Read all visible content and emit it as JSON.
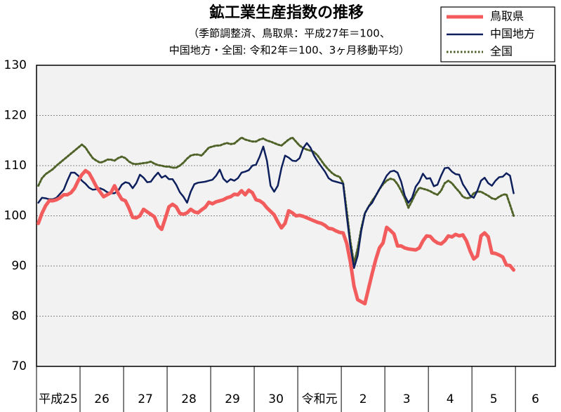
{
  "chart_data": {
    "type": "line",
    "title": "鉱工業生産指数の推移",
    "subtitle": [
      "（季節調整済、鳥取県：平成27年＝100、",
      "中国地方・全国: 令和2年＝100、3ヶ月移動平均）"
    ],
    "categories": [
      "平成25",
      null,
      null,
      null,
      null,
      null,
      null,
      null,
      null,
      null,
      null,
      null,
      "26",
      null,
      null,
      null,
      null,
      null,
      null,
      null,
      null,
      null,
      null,
      null,
      "27",
      null,
      null,
      null,
      null,
      null,
      null,
      null,
      null,
      null,
      null,
      null,
      "28",
      null,
      null,
      null,
      null,
      null,
      null,
      null,
      null,
      null,
      null,
      null,
      "29",
      null,
      null,
      null,
      null,
      null,
      null,
      null,
      null,
      null,
      null,
      null,
      "30",
      null,
      null,
      null,
      null,
      null,
      null,
      null,
      null,
      null,
      null,
      null,
      "令和元",
      null,
      null,
      null,
      null,
      null,
      null,
      null,
      null,
      null,
      null,
      null,
      "2",
      null,
      null,
      null,
      null,
      null,
      null,
      null,
      null,
      null,
      null,
      null,
      "3",
      null,
      null,
      null,
      null,
      null,
      null,
      null,
      null,
      null,
      null,
      null,
      "4",
      null,
      null,
      null,
      null,
      null,
      null,
      null,
      null,
      null,
      null,
      null,
      "5",
      null,
      null,
      null,
      null,
      null,
      null,
      null,
      null,
      null,
      null,
      null,
      "6",
      null,
      null,
      null,
      null,
      null,
      null,
      null,
      null,
      null,
      null,
      null
    ],
    "series": [
      {
        "name": "鳥取県",
        "color": "#f25c5c",
        "style": "solid",
        "values": [
          98.5,
          100.5,
          102,
          103,
          103,
          103.2,
          103.6,
          104.2,
          104.2,
          104.6,
          105.5,
          107,
          108.2,
          109,
          108.5,
          107.2,
          105.8,
          104.8,
          103.8,
          104.2,
          104.6,
          106,
          104.5,
          103.3,
          103,
          101.5,
          99.7,
          99.6,
          100,
          101.3,
          100.8,
          100.3,
          99.8,
          98,
          97.3,
          99.5,
          101.8,
          102.3,
          101.8,
          100.5,
          100.3,
          100.6,
          101.3,
          100.8,
          100.6,
          101.2,
          101.7,
          102.7,
          102.4,
          102.8,
          103,
          103.2,
          103.6,
          103.8,
          104.3,
          104.2,
          105,
          104.2,
          105.1,
          104.6,
          103.2,
          103,
          102.5,
          101.6,
          100.9,
          100.2,
          98.8,
          97.6,
          98.5,
          101,
          100.6,
          100,
          100.1,
          99.9,
          99.6,
          99.3,
          99,
          98.7,
          98.5,
          98.1,
          97.5,
          97.4,
          97,
          96.7,
          96.6,
          94.5,
          90.8,
          86,
          83.3,
          82.9,
          82.5,
          85.5,
          88.5,
          91.3,
          93.6,
          94.6,
          97.7,
          97.1,
          96.4,
          94,
          94,
          93.6,
          93.4,
          93.3,
          93.2,
          93.6,
          95,
          96,
          95.9,
          95.1,
          94.6,
          94.4,
          95,
          96,
          95.8,
          96.3,
          96,
          96.2,
          95,
          93,
          91.4,
          92,
          96,
          96.6,
          95.8,
          92.6,
          92.5,
          92.2,
          91.8,
          90.2,
          90.1,
          89.2,
          null,
          null,
          null,
          null,
          null,
          null,
          null,
          null,
          null,
          null,
          null,
          null
        ]
      },
      {
        "name": "中国地方",
        "color": "#0d1f5c",
        "style": "solid",
        "values": [
          102.6,
          103.6,
          103.5,
          103.3,
          103.3,
          103.6,
          104.4,
          105.2,
          107,
          108.6,
          108.6,
          108,
          107,
          106.4,
          105.6,
          105.2,
          105.3,
          105.5,
          105.2,
          104.7,
          104.5,
          104.5,
          105,
          106.2,
          106.7,
          106.5,
          105.5,
          106.5,
          108.2,
          107.6,
          106.7,
          106.8,
          107.8,
          108.6,
          107.6,
          108,
          107.3,
          107.3,
          106.2,
          104.7,
          103.8,
          102.6,
          104.8,
          106.3,
          106.6,
          106.7,
          106.8,
          107,
          107.2,
          108,
          109.2,
          107.4,
          106.7,
          107.3,
          107,
          107.5,
          108.6,
          108.8,
          109.1,
          110,
          110.2,
          111.8,
          113.8,
          111,
          106,
          104.8,
          106,
          109.5,
          112,
          111.6,
          111,
          110.9,
          111.5,
          113.5,
          114.5,
          113.6,
          112,
          110.8,
          109.8,
          108.8,
          107.5,
          107,
          106.8,
          106.6,
          106.4,
          100,
          94,
          89.6,
          92,
          97,
          100.5,
          101.8,
          102.6,
          104,
          105.3,
          106.6,
          108,
          108.8,
          109,
          108.6,
          106.8,
          104,
          102.6,
          103.6,
          105.8,
          106.8,
          108.4,
          107.4,
          107.5,
          105.9,
          106.2,
          108,
          109.5,
          109.6,
          108.8,
          108.3,
          108.2,
          106.3,
          105.2,
          104,
          103.6,
          105,
          107,
          107.6,
          106.5,
          106,
          107,
          107.7,
          107.8,
          108.5,
          108,
          104.5,
          null,
          null,
          null,
          null,
          null,
          null,
          null,
          null,
          null,
          null,
          null,
          null
        ]
      },
      {
        "name": "全国",
        "color": "#4f6228",
        "style": "dotted",
        "values": [
          106,
          107.5,
          108.3,
          108.8,
          109.3,
          110,
          110.6,
          111.2,
          111.8,
          112.4,
          113,
          113.6,
          114.2,
          113.6,
          112.5,
          111.5,
          111,
          110.6,
          110.8,
          111.2,
          111.2,
          111,
          111.5,
          111.8,
          111.5,
          110.8,
          110.4,
          110.3,
          110.4,
          110.5,
          110.6,
          110.8,
          110.4,
          110.1,
          110,
          109.8,
          109.8,
          109.6,
          109.6,
          110,
          110.6,
          111.4,
          112,
          112.2,
          112.2,
          112,
          112.8,
          113.6,
          113.8,
          114,
          114,
          114.3,
          114.5,
          114.3,
          114.4,
          115,
          115.6,
          115.2,
          115,
          114.8,
          114.8,
          115.2,
          115.4,
          115,
          114.8,
          114.5,
          114.2,
          114,
          114.6,
          115.2,
          115.6,
          114.8,
          114,
          113.5,
          113.2,
          113,
          112.7,
          112,
          111,
          110,
          109.2,
          108.5,
          108,
          107.8,
          106.6,
          101,
          95,
          90.5,
          93.5,
          97.5,
          100.5,
          101.8,
          103,
          104,
          105.3,
          106.3,
          107,
          107.4,
          107.2,
          106.3,
          105,
          103.5,
          101.6,
          103,
          104.5,
          105.6,
          105.4,
          105.2,
          104.9,
          104.5,
          104.2,
          105,
          106.5,
          107,
          106.5,
          105.6,
          104.8,
          103.8,
          103.5,
          103.6,
          104.5,
          104.8,
          104.8,
          104.4,
          104,
          103.5,
          103.3,
          103.8,
          104.2,
          104.3,
          102.2,
          100,
          null,
          null,
          null,
          null,
          null,
          null,
          null,
          null,
          null,
          null,
          null,
          null
        ]
      }
    ],
    "ylim": [
      70,
      130
    ],
    "yticks": [
      70,
      80,
      90,
      100,
      110,
      120,
      130
    ],
    "grid": true,
    "legend": "top-right"
  }
}
